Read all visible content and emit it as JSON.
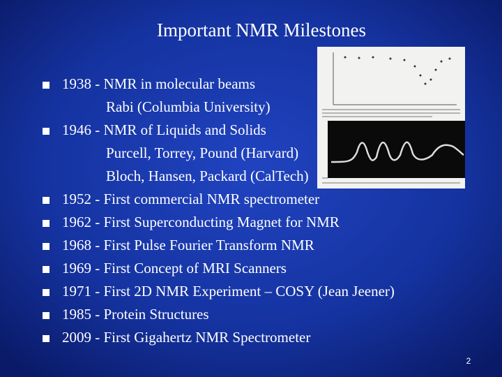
{
  "title": "Important NMR Milestones",
  "items": [
    {
      "text": "1938 - NMR in molecular beams",
      "sub": [
        "Rabi (Columbia University)"
      ]
    },
    {
      "text": "1946 - NMR of Liquids and Solids",
      "sub": [
        "Purcell, Torrey, Pound (Harvard)",
        "Bloch, Hansen, Packard (CalTech)"
      ]
    },
    {
      "text": "1952 - First commercial NMR spectrometer",
      "sub": []
    },
    {
      "text": "1962 - First Superconducting Magnet for NMR",
      "sub": []
    },
    {
      "text": "1968 - First Pulse Fourier Transform NMR",
      "sub": []
    },
    {
      "text": "1969 - First Concept of MRI Scanners",
      "sub": []
    },
    {
      "text": "1971 - First 2D NMR Experiment – COSY (Jean Jeener)",
      "sub": []
    },
    {
      "text": "1985 - Protein Structures",
      "sub": []
    },
    {
      "text": "2009 - First Gigahertz NMR Spectrometer",
      "sub": []
    }
  ],
  "page_number": "2"
}
